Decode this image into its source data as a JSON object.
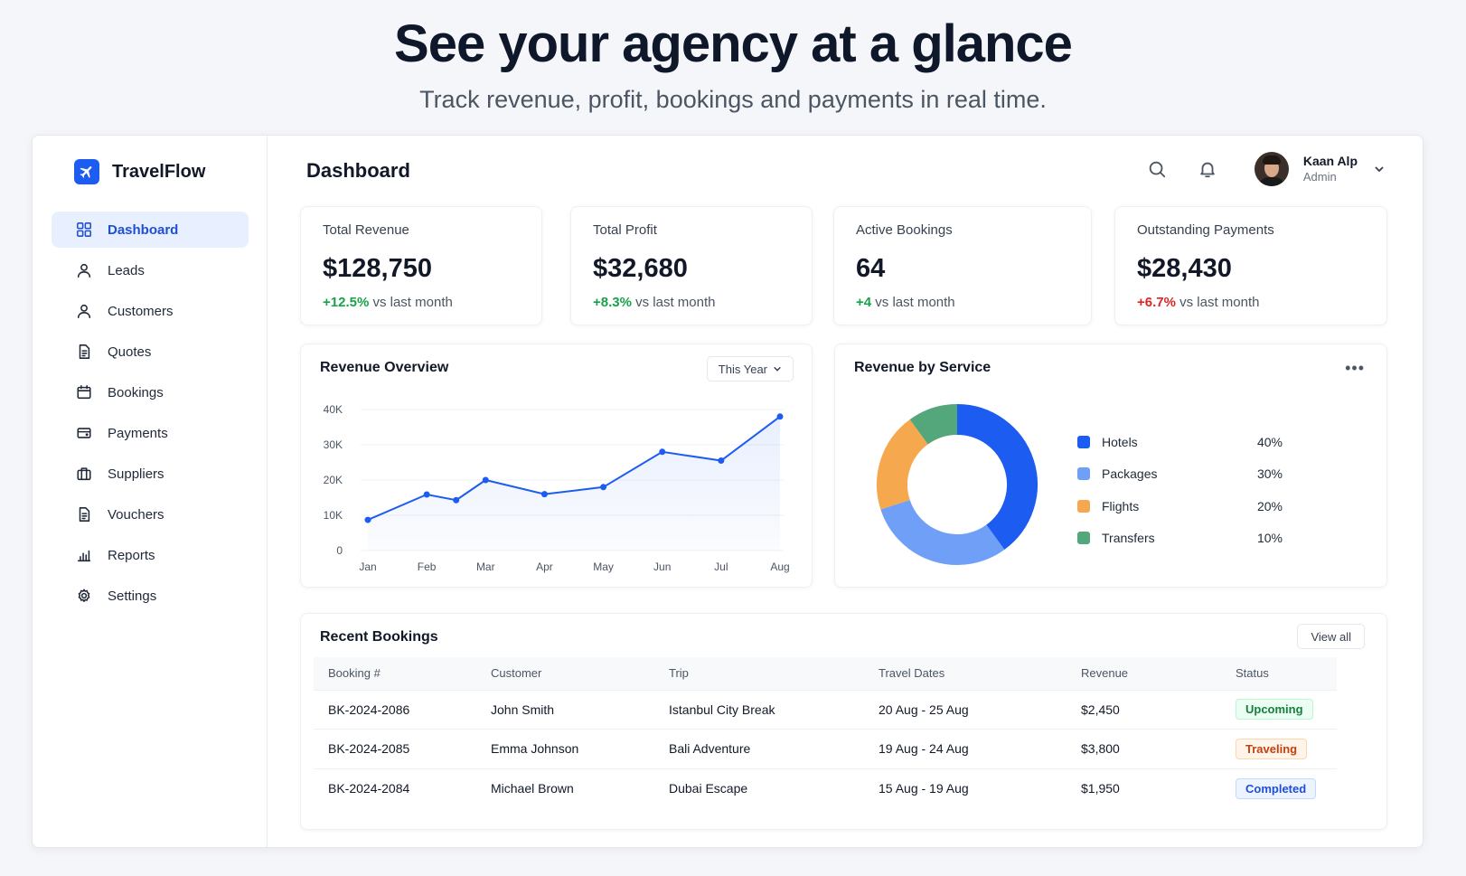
{
  "hero": {
    "title": "See your agency at a glance",
    "subtitle": "Track revenue, profit, bookings and payments in real time."
  },
  "brand": {
    "name": "TravelFlow",
    "logo_icon": "plane-icon",
    "color": "#1d5cf0"
  },
  "sidebar": {
    "items": [
      {
        "label": "Dashboard",
        "icon": "grid-icon",
        "active": true
      },
      {
        "label": "Leads",
        "icon": "user-icon"
      },
      {
        "label": "Customers",
        "icon": "user-icon"
      },
      {
        "label": "Quotes",
        "icon": "document-icon"
      },
      {
        "label": "Bookings",
        "icon": "calendar-icon"
      },
      {
        "label": "Payments",
        "icon": "wallet-icon"
      },
      {
        "label": "Suppliers",
        "icon": "briefcase-icon"
      },
      {
        "label": "Vouchers",
        "icon": "document-icon"
      },
      {
        "label": "Reports",
        "icon": "bar-chart-icon"
      },
      {
        "label": "Settings",
        "icon": "gear-icon"
      }
    ]
  },
  "header": {
    "title": "Dashboard",
    "user": {
      "name": "Kaan Alp",
      "role": "Admin"
    }
  },
  "stats": [
    {
      "label": "Total Revenue",
      "value": "$128,750",
      "change": "+12.5%",
      "suffix": "vs last month",
      "trend": "positive"
    },
    {
      "label": "Total Profit",
      "value": "$32,680",
      "change": "+8.3%",
      "suffix": "vs last month",
      "trend": "positive"
    },
    {
      "label": "Active Bookings",
      "value": "64",
      "change": "+4",
      "suffix": "vs last month",
      "trend": "positive"
    },
    {
      "label": "Outstanding Payments",
      "value": "$28,430",
      "change": "+6.7%",
      "suffix": "vs last month",
      "trend": "negative"
    }
  ],
  "revenue_overview": {
    "title": "Revenue Overview",
    "range": "This Year"
  },
  "revenue_by_service": {
    "title": "Revenue by Service"
  },
  "chart_data": [
    {
      "type": "area",
      "title": "Revenue Overview",
      "x": [
        "Jan",
        "Feb",
        "Mar",
        "Apr",
        "May",
        "Jun",
        "Jul",
        "Aug"
      ],
      "points": [
        {
          "x": "Jan",
          "y": 8700
        },
        {
          "x": "Feb",
          "y": 15900
        },
        {
          "x": "Feb-Mar",
          "y": 14300
        },
        {
          "x": "Mar",
          "y": 20000
        },
        {
          "x": "Apr",
          "y": 16000
        },
        {
          "x": "May",
          "y": 18000
        },
        {
          "x": "Jun",
          "y": 28000
        },
        {
          "x": "Jul",
          "y": 25500
        },
        {
          "x": "Aug",
          "y": 38000
        }
      ],
      "yticks": [
        "0",
        "10K",
        "20K",
        "30K",
        "40K"
      ],
      "ylim": [
        0,
        40000
      ],
      "color": "#1d5cf0",
      "grid": true
    },
    {
      "type": "pie",
      "title": "Revenue by Service",
      "donut": true,
      "slices": [
        {
          "name": "Hotels",
          "value": 40,
          "label": "40%",
          "color": "#1d5cf0"
        },
        {
          "name": "Packages",
          "value": 30,
          "label": "30%",
          "color": "#6f9ff6"
        },
        {
          "name": "Flights",
          "value": 20,
          "label": "20%",
          "color": "#f6a84f"
        },
        {
          "name": "Transfers",
          "value": 10,
          "label": "10%",
          "color": "#54a77b"
        }
      ],
      "legend": "right"
    }
  ],
  "recent_bookings": {
    "title": "Recent Bookings",
    "view_all": "View all",
    "columns": [
      "Booking #",
      "Customer",
      "Trip",
      "Travel Dates",
      "Revenue",
      "Status"
    ],
    "rows": [
      {
        "id": "BK-2024-2086",
        "customer": "John Smith",
        "trip": "Istanbul City Break",
        "dates": "20 Aug - 25 Aug",
        "revenue": "$2,450",
        "status": "Upcoming",
        "status_type": "upcoming"
      },
      {
        "id": "BK-2024-2085",
        "customer": "Emma Johnson",
        "trip": "Bali Adventure",
        "dates": "19 Aug - 24 Aug",
        "revenue": "$3,800",
        "status": "Traveling",
        "status_type": "traveling"
      },
      {
        "id": "BK-2024-2084",
        "customer": "Michael Brown",
        "trip": "Dubai Escape",
        "dates": "15 Aug - 19 Aug",
        "revenue": "$1,950",
        "status": "Completed",
        "status_type": "completed"
      }
    ]
  }
}
